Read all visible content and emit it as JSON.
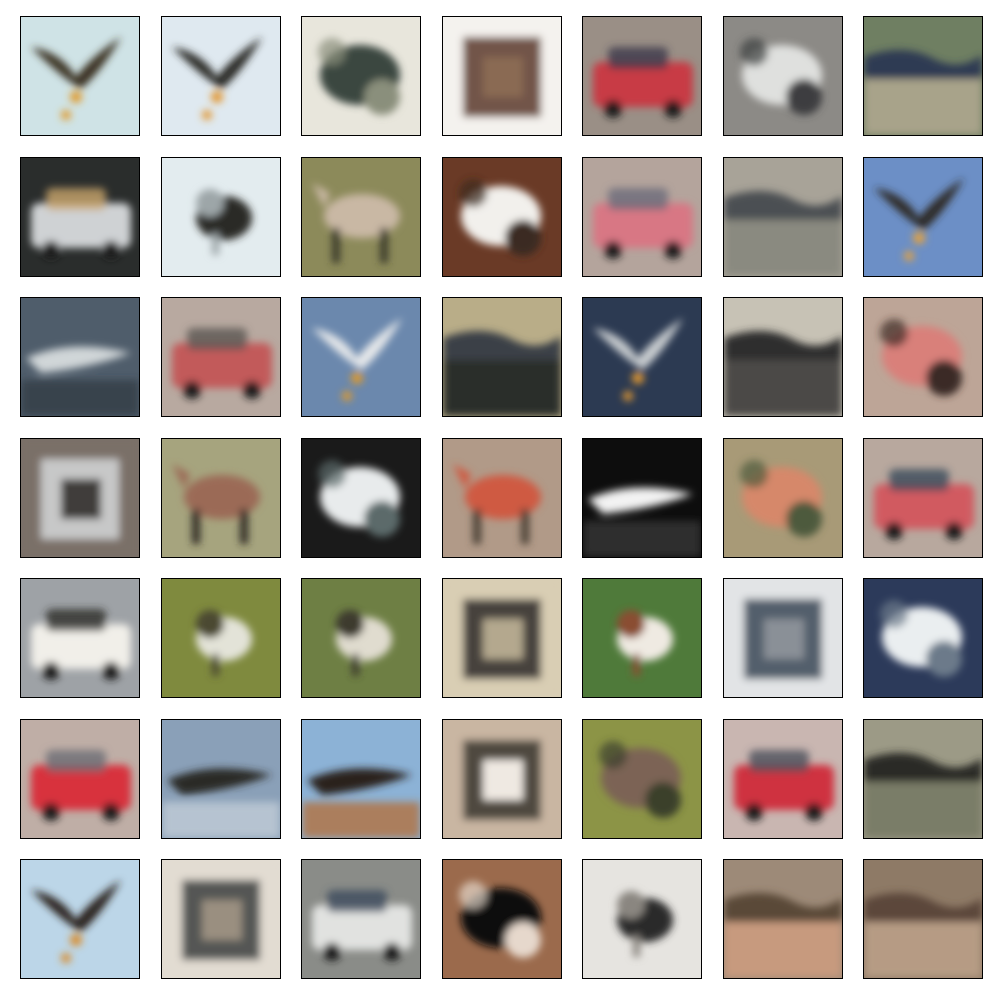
{
  "figure": {
    "title": "",
    "description_free": true,
    "grid": {
      "rows": 7,
      "cols": 7,
      "count": 49
    }
  },
  "tiles": [
    {
      "bg": "#cfe3e6",
      "fg": "#3a3024",
      "accent": "#e09a2a",
      "kind": "bird"
    },
    {
      "bg": "#dfe9f0",
      "fg": "#2c2a26",
      "accent": "#e2952d",
      "kind": "bird"
    },
    {
      "bg": "#e8e6dc",
      "fg": "#3b463f",
      "accent": "#8a8f7c",
      "kind": "blob"
    },
    {
      "bg": "#f4f2ee",
      "fg": "#5a3a2a",
      "accent": "#8a6a52",
      "kind": "frame"
    },
    {
      "bg": "#9a8f86",
      "fg": "#c83a44",
      "accent": "#3b3a4a",
      "kind": "car"
    },
    {
      "bg": "#8c8a86",
      "fg": "#dfe0de",
      "accent": "#3c3e3f",
      "kind": "blob"
    },
    {
      "bg": "#6f7f62",
      "fg": "#2f3b52",
      "accent": "#a8a38a",
      "kind": "land"
    },
    {
      "bg": "#2a2d2c",
      "fg": "#cfd2d4",
      "accent": "#c9a56c",
      "kind": "car"
    },
    {
      "bg": "#e3ecef",
      "fg": "#2b2a28",
      "accent": "#9da6a8",
      "kind": "dog"
    },
    {
      "bg": "#8c8a5a",
      "fg": "#c9b8a4",
      "accent": "#3a3a2a",
      "kind": "horse"
    },
    {
      "bg": "#6a3a26",
      "fg": "#f2f0ec",
      "accent": "#3b2a20",
      "kind": "blob"
    },
    {
      "bg": "#b4a49c",
      "fg": "#d87784",
      "accent": "#6a6a7a",
      "kind": "car"
    },
    {
      "bg": "#a8a398",
      "fg": "#4b4f52",
      "accent": "#8a8a80",
      "kind": "land"
    },
    {
      "bg": "#6c8fc6",
      "fg": "#2d2b27",
      "accent": "#e7a23a",
      "kind": "bird"
    },
    {
      "bg": "#4f5d6b",
      "fg": "#d0d6d8",
      "accent": "#2e3640",
      "kind": "plane"
    },
    {
      "bg": "#b8a9a0",
      "fg": "#c25a5a",
      "accent": "#5a5552",
      "kind": "car"
    },
    {
      "bg": "#6b88ad",
      "fg": "#e6e8ea",
      "accent": "#e09a2a",
      "kind": "bird"
    },
    {
      "bg": "#b9ad88",
      "fg": "#3a3f47",
      "accent": "#2b2f2c",
      "kind": "land"
    },
    {
      "bg": "#2c3a52",
      "fg": "#c9cdd0",
      "accent": "#e39a33",
      "kind": "bird"
    },
    {
      "bg": "#c7c2b5",
      "fg": "#2e2f2f",
      "accent": "#4b4a47",
      "kind": "land"
    },
    {
      "bg": "#bda597",
      "fg": "#d9807a",
      "accent": "#3a2a25",
      "kind": "blob"
    },
    {
      "bg": "#7a7068",
      "fg": "#d5d7d9",
      "accent": "#3f3c3a",
      "kind": "frame"
    },
    {
      "bg": "#a6a47e",
      "fg": "#9b6a56",
      "accent": "#2e2c28",
      "kind": "horse"
    },
    {
      "bg": "#1a1a1a",
      "fg": "#e8ebec",
      "accent": "#5b6b6b",
      "kind": "blob"
    },
    {
      "bg": "#b19a88",
      "fg": "#cf5a43",
      "accent": "#4a4036",
      "kind": "horse"
    },
    {
      "bg": "#0d0d0d",
      "fg": "#f2f2f2",
      "accent": "#3c3c3c",
      "kind": "plane"
    },
    {
      "bg": "#a89a77",
      "fg": "#d6886a",
      "accent": "#4d5a3c",
      "kind": "blob"
    },
    {
      "bg": "#b8a89e",
      "fg": "#d15a60",
      "accent": "#3a4a5a",
      "kind": "car"
    },
    {
      "bg": "#9ea2a6",
      "fg": "#f1efe9",
      "accent": "#2c2a28",
      "kind": "car"
    },
    {
      "bg": "#7f8a3e",
      "fg": "#e3e3d8",
      "accent": "#4b4a32",
      "kind": "dog"
    },
    {
      "bg": "#6e7f44",
      "fg": "#e0dccf",
      "accent": "#3c3a2e",
      "kind": "dog"
    },
    {
      "bg": "#d9ceb4",
      "fg": "#2c2a27",
      "accent": "#b4a88e",
      "kind": "frame"
    },
    {
      "bg": "#4f7a3a",
      "fg": "#efeae2",
      "accent": "#8a4e32",
      "kind": "dog"
    },
    {
      "bg": "#e2e4e6",
      "fg": "#3a4656",
      "accent": "#8a9097",
      "kind": "frame"
    },
    {
      "bg": "#2c3a5a",
      "fg": "#eaeef0",
      "accent": "#6c7a8a",
      "kind": "blob"
    },
    {
      "bg": "#bfaea6",
      "fg": "#d8323d",
      "accent": "#6a6d74",
      "kind": "car"
    },
    {
      "bg": "#8aa0b8",
      "fg": "#2b2a28",
      "accent": "#c9d3dc",
      "kind": "plane"
    },
    {
      "bg": "#8cb2d6",
      "fg": "#2c221c",
      "accent": "#b86a2a",
      "kind": "plane"
    },
    {
      "bg": "#c9b6a2",
      "fg": "#3a3530",
      "accent": "#efe9e2",
      "kind": "frame"
    },
    {
      "bg": "#8c9446",
      "fg": "#7c6454",
      "accent": "#3a3f2c",
      "kind": "blob"
    },
    {
      "bg": "#c9b6b1",
      "fg": "#cf3240",
      "accent": "#4a4f5a",
      "kind": "car"
    },
    {
      "bg": "#9c9a86",
      "fg": "#2a2c28",
      "accent": "#7a7d68",
      "kind": "land"
    },
    {
      "bg": "#bcd6e8",
      "fg": "#2b221c",
      "accent": "#d98b2a",
      "kind": "bird"
    },
    {
      "bg": "#e2dcd2",
      "fg": "#3c3f40",
      "accent": "#9a8f80",
      "kind": "frame"
    },
    {
      "bg": "#8a8c88",
      "fg": "#e1e2e0",
      "accent": "#3c4a5c",
      "kind": "car"
    },
    {
      "bg": "#9b6a4c",
      "fg": "#0a0a0a",
      "accent": "#e6d8cc",
      "kind": "blob"
    },
    {
      "bg": "#e6e4e0",
      "fg": "#2a2a2a",
      "accent": "#8a8680",
      "kind": "dog"
    },
    {
      "bg": "#9d8a78",
      "fg": "#5a4838",
      "accent": "#c79a7e",
      "kind": "land"
    },
    {
      "bg": "#8e7a66",
      "fg": "#5b463a",
      "accent": "#b69b84",
      "kind": "land"
    }
  ]
}
